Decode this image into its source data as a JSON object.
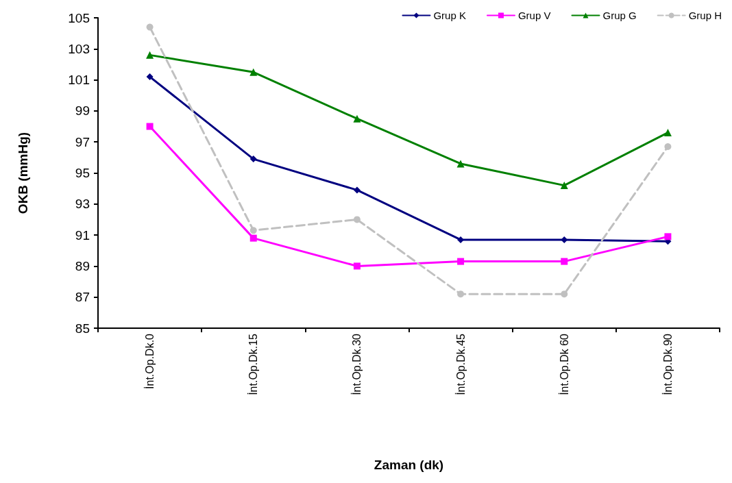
{
  "chart_data": {
    "type": "line",
    "xlabel": "Zaman (dk)",
    "ylabel": "OKB (mmHg)",
    "categories": [
      "İnt.Op.Dk.0",
      "İnt.Op.Dk.15",
      "İnt.Op.Dk.30",
      "İnt.Op.Dk.45",
      "İnt.Op.Dk 60",
      "İnt.Op.Dk.90"
    ],
    "series": [
      {
        "name": "Grup K",
        "color": "#000080",
        "marker": "diamond",
        "line_style": "solid",
        "values": [
          101.2,
          95.9,
          93.9,
          90.7,
          90.7,
          90.6
        ]
      },
      {
        "name": "Grup V",
        "color": "#ff00ff",
        "marker": "square",
        "line_style": "solid",
        "values": [
          98.0,
          90.8,
          89.0,
          89.3,
          89.3,
          90.9
        ]
      },
      {
        "name": "Grup G",
        "color": "#008000",
        "marker": "triangle",
        "line_style": "solid",
        "values": [
          102.6,
          101.5,
          98.5,
          95.6,
          94.2,
          97.6
        ]
      },
      {
        "name": "Grup H",
        "color": "#c0c0c0",
        "marker": "circle",
        "line_style": "dashed",
        "values": [
          104.4,
          91.3,
          92.0,
          87.2,
          87.2,
          96.7
        ]
      }
    ],
    "ylim": [
      85,
      105
    ],
    "yticks": [
      85,
      87,
      89,
      91,
      93,
      95,
      97,
      99,
      101,
      103,
      105
    ],
    "grid": false,
    "legend": "top right"
  }
}
